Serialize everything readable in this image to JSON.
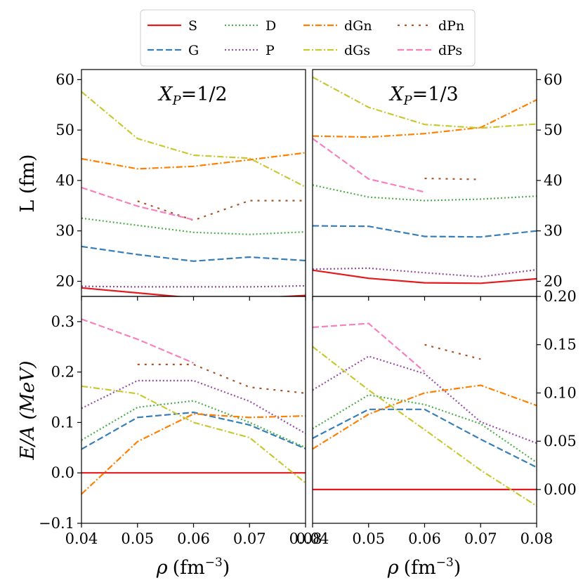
{
  "chart_data": {
    "type": "line",
    "x_axis": {
      "label_main": "ρ",
      "label_unit": "(fm",
      "label_exp": "−3",
      "label_close": ")",
      "range": [
        0.04,
        0.08
      ],
      "ticks": [
        0.04,
        0.05,
        0.06,
        0.07,
        0.08
      ],
      "tick_labels": [
        "0.04",
        "0.05",
        "0.06",
        "0.07",
        "0.08"
      ]
    },
    "legend": {
      "placement": "top-center",
      "entries": [
        {
          "name": "S",
          "color": "#e41a1c",
          "dash": "solid"
        },
        {
          "name": "G",
          "color": "#377eb8",
          "dash": "dashed"
        },
        {
          "name": "D",
          "color": "#4daf4a",
          "dash": "dotted"
        },
        {
          "name": "P",
          "color": "#984ea3",
          "dash": "dotted"
        },
        {
          "name": "dGn",
          "color": "#ff7f00",
          "dash": "dashdot"
        },
        {
          "name": "dGs",
          "color": "#c8c832",
          "dash": "dashdot"
        },
        {
          "name": "dPn",
          "color": "#a65628",
          "dash": "loosedot"
        },
        {
          "name": "dPs",
          "color": "#f781bf",
          "dash": "dashed"
        }
      ]
    },
    "panels": [
      {
        "id": "top-left",
        "title_sym": "X",
        "title_sub": "P",
        "title_val": "=1/2",
        "ylabel": "L (fm)",
        "ylim": [
          17,
          62
        ],
        "yticks": [
          20,
          30,
          40,
          50,
          60
        ],
        "ytick_labels": [
          "20",
          "30",
          "40",
          "50",
          "60"
        ],
        "series": [
          {
            "name": "S",
            "x": [
              0.04,
              0.05,
              0.06,
              0.07,
              0.08
            ],
            "y": [
              18.7,
              17.7,
              16.7,
              16.6,
              17.2
            ]
          },
          {
            "name": "G",
            "x": [
              0.04,
              0.05,
              0.06,
              0.07,
              0.08
            ],
            "y": [
              26.9,
              25.3,
              24.0,
              24.8,
              24.1
            ]
          },
          {
            "name": "D",
            "x": [
              0.04,
              0.05,
              0.06,
              0.07,
              0.08
            ],
            "y": [
              32.5,
              31.1,
              29.7,
              29.3,
              29.8
            ]
          },
          {
            "name": "P",
            "x": [
              0.04,
              0.05,
              0.06,
              0.07,
              0.08
            ],
            "y": [
              19.0,
              18.9,
              18.9,
              18.9,
              19.1
            ]
          },
          {
            "name": "dGn",
            "x": [
              0.04,
              0.05,
              0.06,
              0.07,
              0.08
            ],
            "y": [
              44.3,
              42.3,
              42.8,
              44.1,
              45.5
            ]
          },
          {
            "name": "dGs",
            "x": [
              0.04,
              0.05,
              0.06,
              0.07,
              0.08
            ],
            "y": [
              57.6,
              48.3,
              45.0,
              44.4,
              38.7
            ]
          },
          {
            "name": "dPn",
            "x": [
              0.05,
              0.06,
              0.07,
              0.08
            ],
            "y": [
              35.9,
              32.1,
              36.0,
              36.0
            ]
          },
          {
            "name": "dPs",
            "x": [
              0.04,
              0.05,
              0.06
            ],
            "y": [
              38.6,
              34.9,
              32.2
            ]
          }
        ]
      },
      {
        "id": "top-right",
        "title_sym": "X",
        "title_sub": "P",
        "title_val": "=1/3",
        "ylabel": "",
        "ylim": [
          17,
          62
        ],
        "yticks": [
          20,
          30,
          40,
          50,
          60
        ],
        "ytick_labels": [
          "20",
          "30",
          "40",
          "50",
          "60"
        ],
        "series": [
          {
            "name": "S",
            "x": [
              0.04,
              0.05,
              0.06,
              0.07,
              0.08
            ],
            "y": [
              22.2,
              20.6,
              19.7,
              19.6,
              20.5
            ]
          },
          {
            "name": "G",
            "x": [
              0.04,
              0.05,
              0.06,
              0.07,
              0.08
            ],
            "y": [
              31.0,
              30.9,
              28.9,
              28.8,
              30.0
            ]
          },
          {
            "name": "D",
            "x": [
              0.04,
              0.05,
              0.06,
              0.07,
              0.08
            ],
            "y": [
              39.1,
              36.7,
              36.0,
              36.3,
              36.9
            ]
          },
          {
            "name": "P",
            "x": [
              0.04,
              0.05,
              0.06,
              0.07,
              0.08
            ],
            "y": [
              22.4,
              22.6,
              21.7,
              20.9,
              22.3
            ]
          },
          {
            "name": "dGn",
            "x": [
              0.04,
              0.05,
              0.06,
              0.07,
              0.08
            ],
            "y": [
              48.8,
              48.6,
              49.3,
              50.5,
              56.0
            ]
          },
          {
            "name": "dGs",
            "x": [
              0.04,
              0.05,
              0.06,
              0.07,
              0.08
            ],
            "y": [
              60.5,
              54.5,
              51.1,
              50.4,
              51.2
            ]
          },
          {
            "name": "dPn",
            "x": [
              0.06,
              0.07
            ],
            "y": [
              40.4,
              40.2
            ]
          },
          {
            "name": "dPs",
            "x": [
              0.04,
              0.05,
              0.06
            ],
            "y": [
              48.3,
              40.3,
              37.7
            ]
          }
        ]
      },
      {
        "id": "bottom-left",
        "ylabel": "E/A (MeV)",
        "ylim": [
          -0.1,
          0.35
        ],
        "yticks": [
          -0.1,
          0.0,
          0.1,
          0.2,
          0.3
        ],
        "ytick_labels": [
          "−0.1",
          "0.0",
          "0.1",
          "0.2",
          "0.3"
        ],
        "series": [
          {
            "name": "S",
            "x": [
              0.04,
              0.05,
              0.06,
              0.07,
              0.08
            ],
            "y": [
              0.0,
              0.0,
              0.0,
              0.0,
              0.0
            ]
          },
          {
            "name": "G",
            "x": [
              0.04,
              0.05,
              0.06,
              0.07,
              0.08
            ],
            "y": [
              0.047,
              0.11,
              0.12,
              0.095,
              0.048
            ]
          },
          {
            "name": "D",
            "x": [
              0.04,
              0.05,
              0.06,
              0.07,
              0.08
            ],
            "y": [
              0.065,
              0.13,
              0.143,
              0.1,
              0.05
            ]
          },
          {
            "name": "P",
            "x": [
              0.04,
              0.05,
              0.06,
              0.07,
              0.08
            ],
            "y": [
              0.128,
              0.183,
              0.183,
              0.142,
              0.078
            ]
          },
          {
            "name": "dGn",
            "x": [
              0.04,
              0.05,
              0.06,
              0.07,
              0.08
            ],
            "y": [
              -0.042,
              0.062,
              0.117,
              0.11,
              0.113
            ]
          },
          {
            "name": "dGs",
            "x": [
              0.04,
              0.05,
              0.06,
              0.07,
              0.08
            ],
            "y": [
              0.172,
              0.157,
              0.1,
              0.07,
              -0.02
            ]
          },
          {
            "name": "dPn",
            "x": [
              0.05,
              0.06,
              0.07,
              0.08
            ],
            "y": [
              0.215,
              0.215,
              0.17,
              0.158
            ]
          },
          {
            "name": "dPs",
            "x": [
              0.04,
              0.05,
              0.06
            ],
            "y": [
              0.305,
              0.265,
              0.218
            ]
          }
        ]
      },
      {
        "id": "bottom-right",
        "ylabel": "",
        "ylim": [
          -0.035,
          0.2
        ],
        "yticks": [
          0.0,
          0.05,
          0.1,
          0.15,
          0.2
        ],
        "ytick_labels": [
          "0.00",
          "0.05",
          "0.10",
          "0.15",
          "0.20"
        ],
        "series": [
          {
            "name": "S",
            "x": [
              0.04,
              0.05,
              0.06,
              0.07,
              0.08
            ],
            "y": [
              0.0,
              0.0,
              0.0,
              0.0,
              0.0
            ]
          },
          {
            "name": "G",
            "x": [
              0.04,
              0.05,
              0.06,
              0.07,
              0.08
            ],
            "y": [
              0.053,
              0.083,
              0.083,
              0.052,
              0.023
            ]
          },
          {
            "name": "D",
            "x": [
              0.04,
              0.05,
              0.06,
              0.07,
              0.08
            ],
            "y": [
              0.063,
              0.098,
              0.088,
              0.068,
              0.028
            ]
          },
          {
            "name": "P",
            "x": [
              0.04,
              0.05,
              0.06,
              0.07,
              0.08
            ],
            "y": [
              0.103,
              0.138,
              0.12,
              0.07,
              0.048
            ]
          },
          {
            "name": "dGn",
            "x": [
              0.04,
              0.05,
              0.06,
              0.07,
              0.08
            ],
            "y": [
              0.042,
              0.078,
              0.1,
              0.108,
              0.087
            ]
          },
          {
            "name": "dGs",
            "x": [
              0.04,
              0.05,
              0.06,
              0.07,
              0.08
            ],
            "y": [
              0.148,
              0.103,
              0.062,
              0.02,
              -0.017
            ]
          },
          {
            "name": "dPn",
            "x": [
              0.06,
              0.07
            ],
            "y": [
              0.15,
              0.135
            ]
          },
          {
            "name": "dPs",
            "x": [
              0.04,
              0.05,
              0.06
            ],
            "y": [
              0.168,
              0.172,
              0.122
            ]
          }
        ]
      }
    ]
  }
}
